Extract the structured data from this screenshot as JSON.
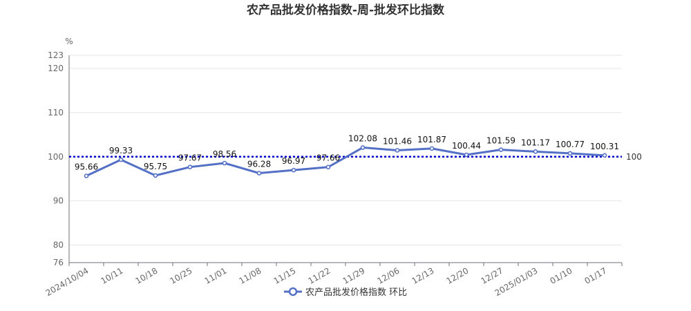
{
  "chart_data": {
    "type": "line",
    "title": "农产品批发价格指数-周-批发环比指数",
    "unit": "%",
    "categories": [
      "2024/10/04",
      "10/11",
      "10/18",
      "10/25",
      "11/01",
      "11/08",
      "11/15",
      "11/22",
      "11/29",
      "12/06",
      "12/13",
      "12/20",
      "12/27",
      "2025/01/03",
      "01/10",
      "01/17"
    ],
    "series": [
      {
        "name": "农产品批发价格指数 环比",
        "values": [
          95.66,
          99.33,
          95.75,
          97.67,
          98.56,
          96.28,
          96.97,
          97.66,
          102.08,
          101.46,
          101.87,
          100.44,
          101.59,
          101.17,
          100.77,
          100.31
        ]
      }
    ],
    "ylim": [
      76,
      123
    ],
    "yticks": [
      76,
      80,
      90,
      100,
      110,
      120,
      123
    ],
    "reference_line": {
      "value": 100,
      "label": "100",
      "color": "#0000cc"
    },
    "line_color": "#5470c6",
    "grid": true,
    "legend": "bottom-center"
  }
}
